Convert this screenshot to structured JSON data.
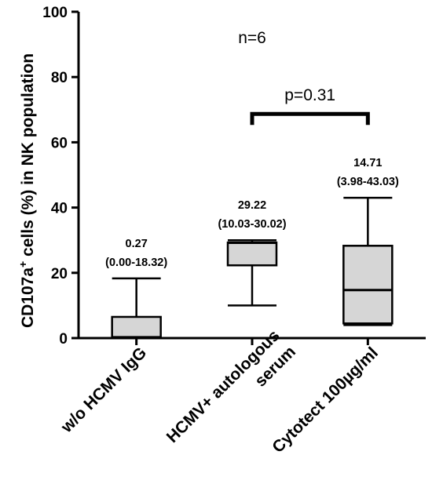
{
  "chart_data": {
    "type": "box",
    "ylabel_pre": "CD107a",
    "ylabel_sup": "+",
    "ylabel_post": " cells (%) in NK population",
    "ylim": [
      0,
      100
    ],
    "yticks": [
      0,
      20,
      40,
      60,
      80,
      100
    ],
    "categories": [
      {
        "lines": [
          "w/o HCMV IgG"
        ]
      },
      {
        "lines": [
          "HCMV+ autologous",
          "serum"
        ]
      },
      {
        "lines": [
          "Cytotect 100µg/ml"
        ]
      }
    ],
    "boxes": [
      {
        "min": 0.0,
        "q1": 0.2,
        "median": 0.27,
        "q3": 6.5,
        "max": 18.3,
        "label_median": "0.27",
        "label_range": "(0.00-18.32)"
      },
      {
        "min": 10.0,
        "q1": 22.3,
        "median": 29.22,
        "q3": 29.3,
        "max": 30.0,
        "label_median": "29.22",
        "label_range": "(10.03-30.02)"
      },
      {
        "min": 4.0,
        "q1": 4.5,
        "median": 14.71,
        "q3": 28.3,
        "max": 43.0,
        "label_median": "14.71",
        "label_range": "(3.98-43.03)"
      }
    ],
    "annotations": {
      "n_text": "n=6",
      "p_text": "p=0.31",
      "comparison": [
        1,
        2
      ]
    },
    "grid": false,
    "legend": "none"
  }
}
